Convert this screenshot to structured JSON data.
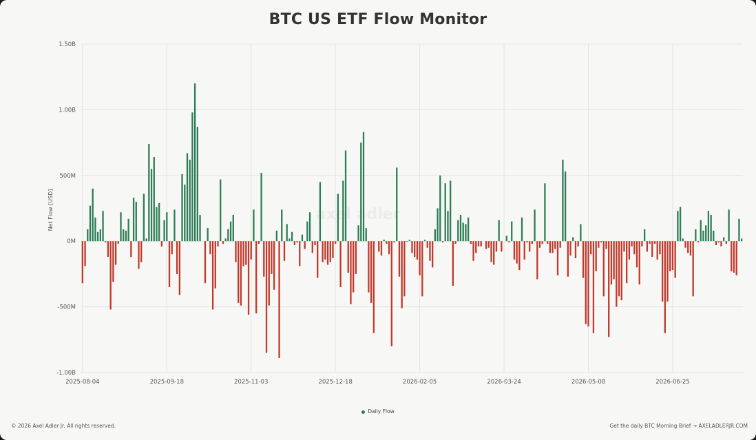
{
  "title": "BTC US ETF Flow Monitor",
  "legend": {
    "label": "Daily Flow"
  },
  "footer": {
    "copyright": "© 2026 Axel Adler Jr. All rights reserved.",
    "promo": "Get the daily BTC Morning Brief → AXELADLERJR.COM"
  },
  "watermark": "axel adler",
  "colors": {
    "positive": "#2e7d57",
    "negative": "#c0392b",
    "grid": "#e4e4e4"
  },
  "chart_data": {
    "type": "bar",
    "title": "BTC US ETF Flow Monitor",
    "ylabel": "Net Flow [USD]",
    "xlabel": "",
    "ylim": [
      -1000,
      1500
    ],
    "unit": "M USD",
    "y_ticks": [
      {
        "value": 1500,
        "label": "1.50B"
      },
      {
        "value": 1000,
        "label": "1.00B"
      },
      {
        "value": 500,
        "label": "500M"
      },
      {
        "value": 0,
        "label": "0M"
      },
      {
        "value": -500,
        "label": "-500M"
      },
      {
        "value": -1000,
        "label": "-1.00B"
      }
    ],
    "x_ticks": [
      "2025-08-04",
      "2025-09-18",
      "2025-11-03",
      "2025-12-18",
      "2026-02-05",
      "2026-03-24",
      "2026-05-08",
      "2026-06-25"
    ],
    "x_tick_index": [
      0,
      33,
      66,
      99,
      132,
      165,
      198,
      231
    ],
    "series": [
      {
        "name": "Daily Flow",
        "values": [
          -320,
          -190,
          90,
          270,
          400,
          180,
          70,
          90,
          230,
          -10,
          -120,
          -520,
          -310,
          -180,
          -20,
          220,
          90,
          80,
          170,
          -120,
          330,
          300,
          -210,
          -160,
          360,
          20,
          740,
          550,
          640,
          260,
          290,
          -40,
          160,
          220,
          -350,
          -100,
          240,
          -250,
          -410,
          510,
          430,
          670,
          620,
          980,
          1200,
          870,
          200,
          0,
          -320,
          100,
          -100,
          -520,
          -360,
          -40,
          470,
          -20,
          20,
          90,
          150,
          200,
          -160,
          -470,
          -490,
          -190,
          -180,
          -560,
          -140,
          240,
          -550,
          -20,
          520,
          -270,
          -850,
          -490,
          -250,
          -370,
          80,
          -890,
          240,
          -150,
          130,
          20,
          70,
          -30,
          -10,
          -190,
          50,
          -60,
          150,
          220,
          -90,
          -30,
          -280,
          450,
          -160,
          -140,
          -180,
          -160,
          -130,
          -20,
          360,
          -350,
          460,
          690,
          -240,
          -480,
          -390,
          -250,
          120,
          750,
          830,
          100,
          -390,
          -470,
          -700,
          0,
          -80,
          -110,
          10,
          -20,
          -100,
          -800,
          -10,
          560,
          -270,
          -510,
          -420,
          -5,
          10,
          -90,
          -120,
          -140,
          -260,
          -420,
          10,
          -50,
          -150,
          -200,
          90,
          250,
          500,
          -10,
          440,
          230,
          460,
          -340,
          -20,
          160,
          200,
          140,
          130,
          180,
          -20,
          -150,
          -90,
          -40,
          -40,
          0,
          -60,
          -50,
          -160,
          -180,
          -80,
          160,
          -80,
          0,
          40,
          -10,
          150,
          -140,
          -170,
          -220,
          180,
          -140,
          -10,
          -80,
          -20,
          240,
          -290,
          -50,
          -20,
          440,
          -20,
          -90,
          -90,
          -60,
          -260,
          -50,
          620,
          530,
          -270,
          -110,
          30,
          -130,
          -40,
          130,
          -280,
          -630,
          -650,
          -100,
          -700,
          -230,
          -50,
          -10,
          -420,
          -60,
          -730,
          -330,
          -290,
          -500,
          -420,
          -450,
          -80,
          -320,
          -140,
          -40,
          -100,
          -200,
          -330,
          -40,
          90,
          -80,
          -20,
          -120,
          -20,
          -140,
          -100,
          -460,
          -700,
          -460,
          -230,
          -220,
          -280,
          230,
          260,
          20,
          -50,
          -90,
          -110,
          -420,
          90,
          -10,
          160,
          80,
          120,
          230,
          200,
          80,
          -30,
          -10,
          -40,
          30,
          -20,
          240,
          -230,
          -240,
          -260,
          170,
          20
        ]
      }
    ],
    "grid": true,
    "legend_position": "bottom-center"
  }
}
